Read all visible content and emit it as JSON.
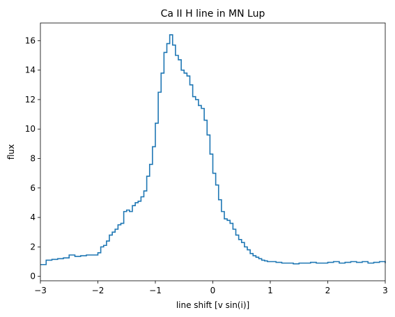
{
  "chart_data": {
    "type": "line",
    "step": true,
    "title": "Ca II H line in MN Lup",
    "xlabel": "line shift [v sin(i)]",
    "ylabel": "flux",
    "xlim": [
      -3,
      3
    ],
    "ylim": [
      -0.3,
      17.2
    ],
    "xticks": [
      -3,
      -2,
      -1,
      0,
      1,
      2,
      3
    ],
    "xtick_labels": [
      "−3",
      "−2",
      "−1",
      "0",
      "1",
      "2",
      "3"
    ],
    "yticks": [
      0,
      2,
      4,
      6,
      8,
      10,
      12,
      14,
      16
    ],
    "ytick_labels": [
      "0",
      "2",
      "4",
      "6",
      "8",
      "10",
      "12",
      "14",
      "16"
    ],
    "grid": false,
    "line_color": "#1f77b4",
    "series": [
      {
        "x": [
          -3.0,
          -2.9,
          -2.8,
          -2.7,
          -2.6,
          -2.5,
          -2.4,
          -2.3,
          -2.2,
          -2.1,
          -2.0,
          -1.95,
          -1.9,
          -1.85,
          -1.8,
          -1.75,
          -1.7,
          -1.65,
          -1.6,
          -1.55,
          -1.5,
          -1.45,
          -1.4,
          -1.35,
          -1.3,
          -1.25,
          -1.2,
          -1.15,
          -1.1,
          -1.05,
          -1.0,
          -0.95,
          -0.9,
          -0.85,
          -0.8,
          -0.75,
          -0.7,
          -0.65,
          -0.6,
          -0.55,
          -0.5,
          -0.45,
          -0.4,
          -0.35,
          -0.3,
          -0.25,
          -0.2,
          -0.15,
          -0.1,
          -0.05,
          0.0,
          0.05,
          0.1,
          0.15,
          0.2,
          0.25,
          0.3,
          0.35,
          0.4,
          0.45,
          0.5,
          0.55,
          0.6,
          0.65,
          0.7,
          0.75,
          0.8,
          0.85,
          0.9,
          0.95,
          1.0,
          1.1,
          1.2,
          1.3,
          1.4,
          1.5,
          1.6,
          1.7,
          1.8,
          1.9,
          2.0,
          2.1,
          2.2,
          2.3,
          2.4,
          2.5,
          2.6,
          2.7,
          2.8,
          2.9,
          3.0
        ],
        "y": [
          0.8,
          1.1,
          1.15,
          1.2,
          1.25,
          1.45,
          1.35,
          1.4,
          1.45,
          1.45,
          1.6,
          2.0,
          2.1,
          2.4,
          2.8,
          3.0,
          3.2,
          3.5,
          3.6,
          4.4,
          4.5,
          4.4,
          4.8,
          5.0,
          5.1,
          5.4,
          5.8,
          6.8,
          7.6,
          8.8,
          10.4,
          12.5,
          13.8,
          15.2,
          15.8,
          16.4,
          15.7,
          15.0,
          14.7,
          14.0,
          13.8,
          13.6,
          13.0,
          12.2,
          12.0,
          11.6,
          11.4,
          10.6,
          9.6,
          8.3,
          7.0,
          6.2,
          5.2,
          4.4,
          3.9,
          3.8,
          3.6,
          3.2,
          2.8,
          2.5,
          2.3,
          2.0,
          1.8,
          1.55,
          1.4,
          1.3,
          1.2,
          1.1,
          1.05,
          1.0,
          1.0,
          0.95,
          0.9,
          0.9,
          0.85,
          0.9,
          0.9,
          0.95,
          0.9,
          0.9,
          0.95,
          1.0,
          0.9,
          0.95,
          1.0,
          0.95,
          1.0,
          0.9,
          0.95,
          1.0,
          0.9
        ]
      }
    ]
  }
}
